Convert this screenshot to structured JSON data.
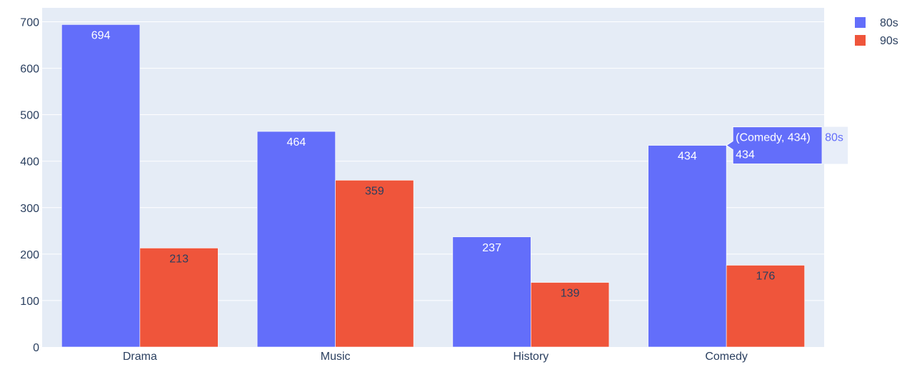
{
  "chart_data": {
    "type": "bar",
    "categories": [
      "Drama",
      "Music",
      "History",
      "Comedy"
    ],
    "series": [
      {
        "name": "80s",
        "color": "#636efa",
        "values": [
          694,
          464,
          237,
          434
        ]
      },
      {
        "name": "90s",
        "color": "#ef553b",
        "values": [
          213,
          359,
          139,
          176
        ]
      }
    ],
    "ylim": [
      0,
      730
    ],
    "yticks": [
      0,
      100,
      200,
      300,
      400,
      500,
      600,
      700
    ],
    "grid": true,
    "legend_position": "top-right",
    "plot_background": "#e5ecf6",
    "text_color": "#2a3f5f"
  },
  "hover": {
    "category": "Comedy",
    "series": "80s",
    "title": "(Comedy, 434)",
    "value": "434",
    "name": "80s"
  }
}
